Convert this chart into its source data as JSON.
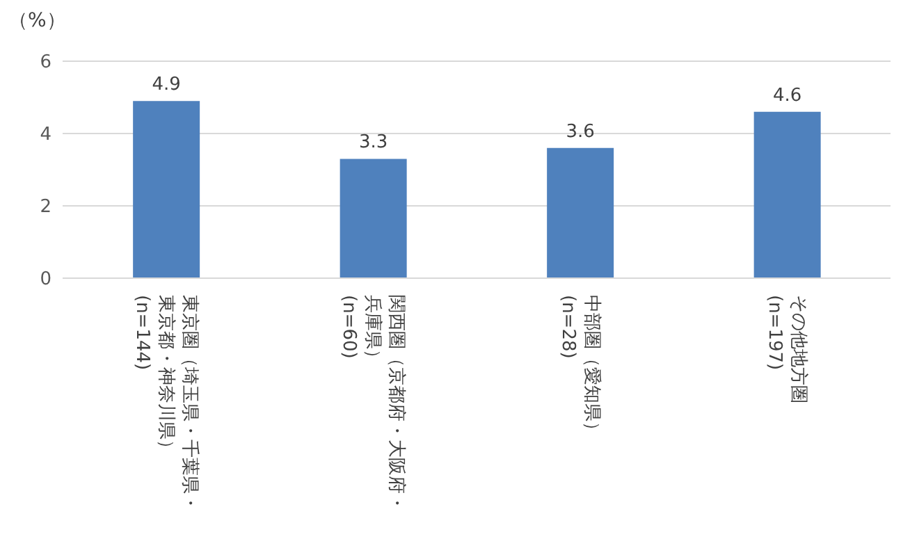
{
  "chart_data": {
    "type": "bar",
    "ylabel": "（%）",
    "categories": [
      "東京圏（埼玉県・千葉県・東京都・神奈川県）(n=144)",
      "関西圏（京都府・大阪府・兵庫県）(n=60)",
      "中部圏（愛知県）(n=28)",
      "その他地方圏(n=197)"
    ],
    "values": [
      4.9,
      3.3,
      3.6,
      4.6
    ],
    "color": "#4f81bd",
    "ylim": [
      0,
      6
    ],
    "yticks": [
      0,
      2,
      4,
      6
    ],
    "grid": "y",
    "data_labels": true
  }
}
